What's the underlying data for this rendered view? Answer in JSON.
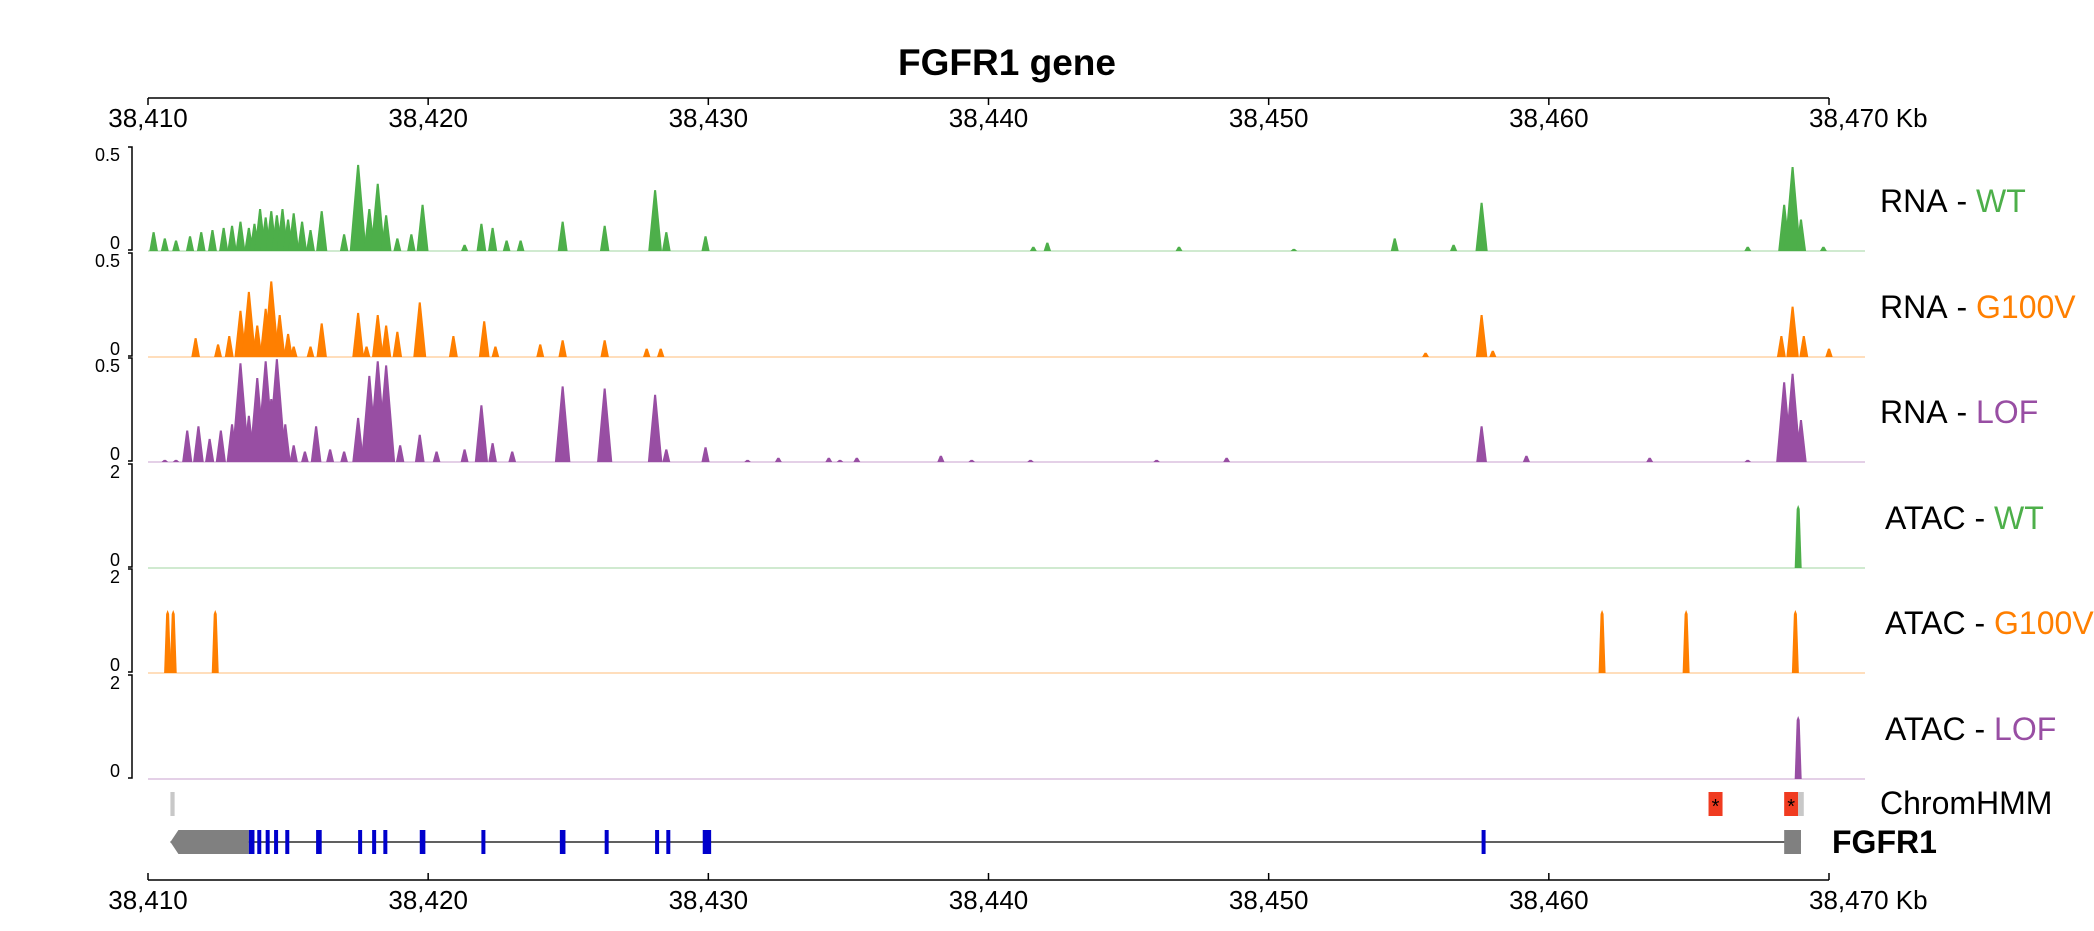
{
  "chart_data": {
    "type": "area",
    "title": "FGFR1 gene",
    "x_unit": "Kb",
    "xlim": [
      38410,
      38470
    ],
    "x_ticks": [
      38410,
      38420,
      38430,
      38440,
      38450,
      38460,
      38470
    ],
    "x_tick_labels": [
      "38,410",
      "38,420",
      "38,430",
      "38,440",
      "38,450",
      "38,460",
      "38,470 Kb"
    ],
    "colors": {
      "WT": "#4daf4a",
      "G100V": "#ff7f00",
      "LOF": "#984ea3",
      "exon": "#0000cc",
      "utr": "#808080",
      "chromhmm": "#f03b20",
      "chromhmm_grey": "#c8c8c8"
    },
    "tracks": [
      {
        "assay": "RNA",
        "sep": " - ",
        "condition": "WT",
        "color": "#4daf4a",
        "ylim": [
          0,
          0.5
        ],
        "ymax_label": "0.5",
        "ymin_label": "0",
        "peaks": [
          [
            38410.2,
            0.09
          ],
          [
            38410.6,
            0.06
          ],
          [
            38411.0,
            0.05
          ],
          [
            38411.5,
            0.07
          ],
          [
            38411.9,
            0.09
          ],
          [
            38412.3,
            0.1
          ],
          [
            38412.7,
            0.11
          ],
          [
            38413.0,
            0.12
          ],
          [
            38413.3,
            0.14
          ],
          [
            38413.6,
            0.11
          ],
          [
            38413.8,
            0.13
          ],
          [
            38414.0,
            0.2
          ],
          [
            38414.2,
            0.16
          ],
          [
            38414.4,
            0.19
          ],
          [
            38414.6,
            0.17
          ],
          [
            38414.8,
            0.2
          ],
          [
            38415.0,
            0.15
          ],
          [
            38415.2,
            0.18
          ],
          [
            38415.5,
            0.14
          ],
          [
            38415.8,
            0.1
          ],
          [
            38416.2,
            0.19
          ],
          [
            38417.0,
            0.08
          ],
          [
            38417.5,
            0.41
          ],
          [
            38417.9,
            0.2
          ],
          [
            38418.2,
            0.32
          ],
          [
            38418.5,
            0.17
          ],
          [
            38418.9,
            0.06
          ],
          [
            38419.4,
            0.08
          ],
          [
            38419.8,
            0.22
          ],
          [
            38421.3,
            0.03
          ],
          [
            38421.9,
            0.13
          ],
          [
            38422.3,
            0.11
          ],
          [
            38422.8,
            0.05
          ],
          [
            38423.3,
            0.05
          ],
          [
            38424.8,
            0.14
          ],
          [
            38426.3,
            0.12
          ],
          [
            38428.1,
            0.29
          ],
          [
            38428.5,
            0.09
          ],
          [
            38429.9,
            0.07
          ],
          [
            38441.6,
            0.02
          ],
          [
            38442.1,
            0.04
          ],
          [
            38446.8,
            0.02
          ],
          [
            38450.9,
            0.01
          ],
          [
            38454.5,
            0.06
          ],
          [
            38456.6,
            0.03
          ],
          [
            38457.6,
            0.23
          ],
          [
            38467.1,
            0.02
          ],
          [
            38468.4,
            0.22
          ],
          [
            38468.7,
            0.4
          ],
          [
            38469.0,
            0.15
          ],
          [
            38469.8,
            0.02
          ]
        ]
      },
      {
        "assay": "RNA",
        "sep": " - ",
        "condition": "G100V",
        "color": "#ff7f00",
        "ylim": [
          0,
          0.5
        ],
        "ymax_label": "0.5",
        "ymin_label": "0",
        "peaks": [
          [
            38411.7,
            0.09
          ],
          [
            38412.5,
            0.06
          ],
          [
            38412.9,
            0.1
          ],
          [
            38413.3,
            0.22
          ],
          [
            38413.6,
            0.31
          ],
          [
            38413.9,
            0.15
          ],
          [
            38414.2,
            0.23
          ],
          [
            38414.4,
            0.36
          ],
          [
            38414.7,
            0.2
          ],
          [
            38415.0,
            0.11
          ],
          [
            38415.2,
            0.05
          ],
          [
            38415.8,
            0.05
          ],
          [
            38416.2,
            0.16
          ],
          [
            38417.5,
            0.21
          ],
          [
            38417.8,
            0.05
          ],
          [
            38418.2,
            0.2
          ],
          [
            38418.5,
            0.15
          ],
          [
            38418.9,
            0.12
          ],
          [
            38419.7,
            0.26
          ],
          [
            38420.9,
            0.1
          ],
          [
            38422.0,
            0.17
          ],
          [
            38422.4,
            0.05
          ],
          [
            38424.0,
            0.06
          ],
          [
            38424.8,
            0.08
          ],
          [
            38426.3,
            0.08
          ],
          [
            38427.8,
            0.04
          ],
          [
            38428.3,
            0.04
          ],
          [
            38455.6,
            0.02
          ],
          [
            38457.6,
            0.2
          ],
          [
            38458.0,
            0.03
          ],
          [
            38468.3,
            0.1
          ],
          [
            38468.7,
            0.24
          ],
          [
            38469.1,
            0.1
          ],
          [
            38470.0,
            0.04
          ]
        ]
      },
      {
        "assay": "RNA",
        "sep": " - ",
        "condition": "LOF",
        "color": "#984ea3",
        "ylim": [
          0,
          0.5
        ],
        "ymax_label": "0.5",
        "ymin_label": "0",
        "peaks": [
          [
            38410.6,
            0.01
          ],
          [
            38411.0,
            0.01
          ],
          [
            38411.4,
            0.15
          ],
          [
            38411.8,
            0.17
          ],
          [
            38412.2,
            0.11
          ],
          [
            38412.6,
            0.15
          ],
          [
            38413.0,
            0.18
          ],
          [
            38413.3,
            0.47
          ],
          [
            38413.6,
            0.22
          ],
          [
            38413.9,
            0.4
          ],
          [
            38414.2,
            0.48
          ],
          [
            38414.4,
            0.3
          ],
          [
            38414.6,
            0.49
          ],
          [
            38414.9,
            0.18
          ],
          [
            38415.2,
            0.08
          ],
          [
            38415.6,
            0.05
          ],
          [
            38416.0,
            0.17
          ],
          [
            38416.5,
            0.06
          ],
          [
            38417.0,
            0.05
          ],
          [
            38417.5,
            0.21
          ],
          [
            38417.9,
            0.41
          ],
          [
            38418.2,
            0.48
          ],
          [
            38418.5,
            0.46
          ],
          [
            38419.0,
            0.08
          ],
          [
            38419.7,
            0.13
          ],
          [
            38420.3,
            0.05
          ],
          [
            38421.3,
            0.06
          ],
          [
            38421.9,
            0.27
          ],
          [
            38422.3,
            0.09
          ],
          [
            38423.0,
            0.05
          ],
          [
            38424.8,
            0.36
          ],
          [
            38426.3,
            0.35
          ],
          [
            38428.1,
            0.32
          ],
          [
            38428.5,
            0.06
          ],
          [
            38429.9,
            0.07
          ],
          [
            38431.4,
            0.01
          ],
          [
            38432.5,
            0.02
          ],
          [
            38434.3,
            0.02
          ],
          [
            38434.7,
            0.01
          ],
          [
            38435.3,
            0.02
          ],
          [
            38438.3,
            0.03
          ],
          [
            38439.4,
            0.01
          ],
          [
            38441.5,
            0.01
          ],
          [
            38446.0,
            0.01
          ],
          [
            38448.5,
            0.02
          ],
          [
            38457.6,
            0.17
          ],
          [
            38459.2,
            0.03
          ],
          [
            38463.6,
            0.02
          ],
          [
            38467.1,
            0.01
          ],
          [
            38468.4,
            0.38
          ],
          [
            38468.7,
            0.42
          ],
          [
            38469.0,
            0.2
          ]
        ]
      },
      {
        "assay": "ATAC",
        "sep": " - ",
        "condition": "WT",
        "color": "#4daf4a",
        "ylim": [
          0,
          2
        ],
        "ymax_label": "2",
        "ymin_label": "0",
        "peaks": [
          [
            38468.9,
            1.2
          ]
        ]
      },
      {
        "assay": "ATAC",
        "sep": " - ",
        "condition": "G100V",
        "color": "#ff7f00",
        "ylim": [
          0,
          2
        ],
        "ymax_label": "2",
        "ymin_label": "0",
        "peaks": [
          [
            38410.7,
            1.2
          ],
          [
            38410.9,
            1.2
          ],
          [
            38412.4,
            1.2
          ],
          [
            38461.9,
            1.2
          ],
          [
            38464.9,
            1.2
          ],
          [
            38468.8,
            1.2
          ]
        ]
      },
      {
        "assay": "ATAC",
        "sep": " - ",
        "condition": "LOF",
        "color": "#984ea3",
        "ylim": [
          0,
          2
        ],
        "ymax_label": "2",
        "ymin_label": "0",
        "peaks": [
          [
            38468.9,
            1.2
          ]
        ]
      }
    ],
    "chromhmm": {
      "label": "ChromHMM",
      "regions": [
        {
          "start": 38410.8,
          "end": 38410.95,
          "state": "grey"
        },
        {
          "start": 38465.7,
          "end": 38466.2,
          "state": "red",
          "mark": "*"
        },
        {
          "start": 38468.4,
          "end": 38468.9,
          "state": "red",
          "mark": "*"
        },
        {
          "start": 38468.9,
          "end": 38469.1,
          "state": "grey"
        }
      ]
    },
    "gene": {
      "name": "FGFR1",
      "strand": "-",
      "start": 38410.8,
      "end": 38469.0,
      "utr": [
        [
          38410.8,
          38413.6
        ],
        [
          38468.4,
          38469.0
        ]
      ],
      "exons": [
        [
          38413.6,
          38413.8
        ],
        [
          38413.9,
          38414.0
        ],
        [
          38414.2,
          38414.3
        ],
        [
          38414.5,
          38414.6
        ],
        [
          38414.9,
          38415.0
        ],
        [
          38416.0,
          38416.2
        ],
        [
          38417.5,
          38417.6
        ],
        [
          38418.0,
          38418.1
        ],
        [
          38418.4,
          38418.5
        ],
        [
          38419.7,
          38419.9
        ],
        [
          38421.9,
          38422.0
        ],
        [
          38424.7,
          38424.9
        ],
        [
          38426.3,
          38426.4
        ],
        [
          38428.1,
          38428.2
        ],
        [
          38428.5,
          38428.6
        ],
        [
          38429.8,
          38430.1
        ],
        [
          38457.6,
          38457.7
        ]
      ]
    }
  }
}
